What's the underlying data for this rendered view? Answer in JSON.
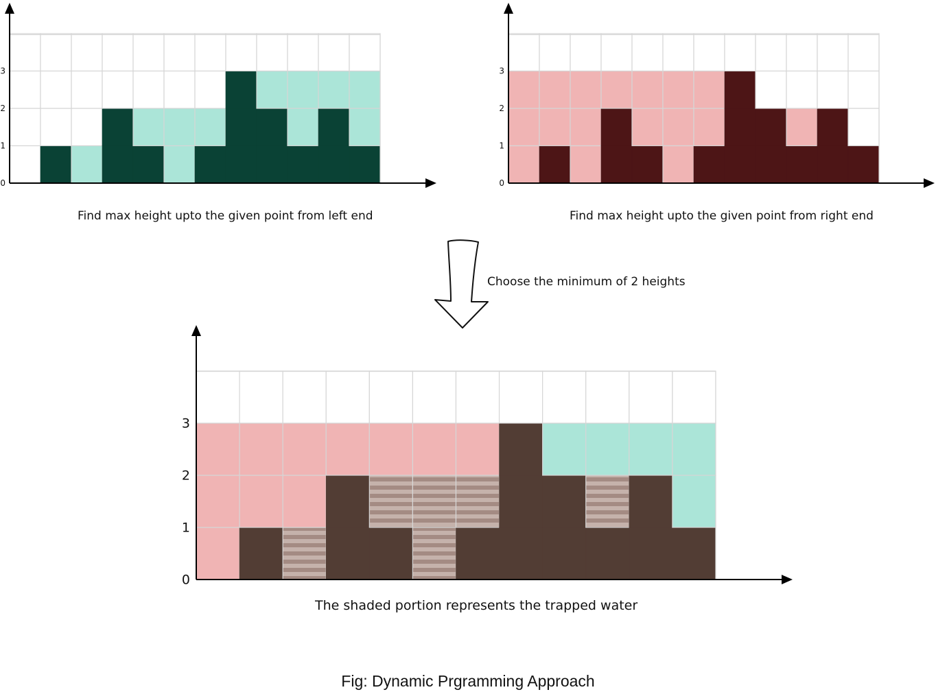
{
  "panels": [
    {
      "id": "left",
      "cols": 12,
      "rows": 4,
      "heights": [
        0,
        1,
        0,
        2,
        1,
        0,
        1,
        3,
        2,
        1,
        2,
        1
      ],
      "fill_levels": [
        0,
        1,
        1,
        2,
        2,
        2,
        2,
        3,
        3,
        3,
        3,
        3
      ],
      "bar_color": "#0a4235",
      "fill_color": "#abe5d8",
      "y_ticks": [
        "0",
        "1",
        "2",
        "3"
      ],
      "caption": "Find max height upto the given point from left end"
    },
    {
      "id": "right",
      "cols": 12,
      "rows": 4,
      "heights": [
        0,
        1,
        0,
        2,
        1,
        0,
        1,
        3,
        2,
        1,
        2,
        1
      ],
      "fill_levels": [
        3,
        3,
        3,
        3,
        3,
        3,
        3,
        3,
        2,
        2,
        2,
        1
      ],
      "bar_color": "#4d1516",
      "fill_color": "#f0b4b4",
      "y_ticks": [
        "0",
        "1",
        "2",
        "3"
      ],
      "caption": "Find max height upto the given point from right end"
    },
    {
      "id": "bottom",
      "cols": 12,
      "rows": 4,
      "heights": [
        0,
        1,
        0,
        2,
        1,
        0,
        1,
        3,
        2,
        1,
        2,
        1
      ],
      "left_max": [
        0,
        1,
        1,
        2,
        2,
        2,
        2,
        3,
        3,
        3,
        3,
        3
      ],
      "right_max": [
        3,
        3,
        3,
        3,
        3,
        3,
        3,
        3,
        2,
        2,
        2,
        1
      ],
      "bar_color": "#523d34",
      "left_fill_color": "#abe5d8",
      "right_fill_color": "#f0b4b4",
      "water_color_a": "#a48b83",
      "water_color_b": "#c5b2ab",
      "y_ticks": [
        "0",
        "1",
        "2",
        "3"
      ],
      "caption": "The shaded portion represents the trapped water"
    }
  ],
  "arrow_label": "Choose the minimum of 2 heights",
  "figure_caption": "Fig: Dynamic Prgramming Approach"
}
